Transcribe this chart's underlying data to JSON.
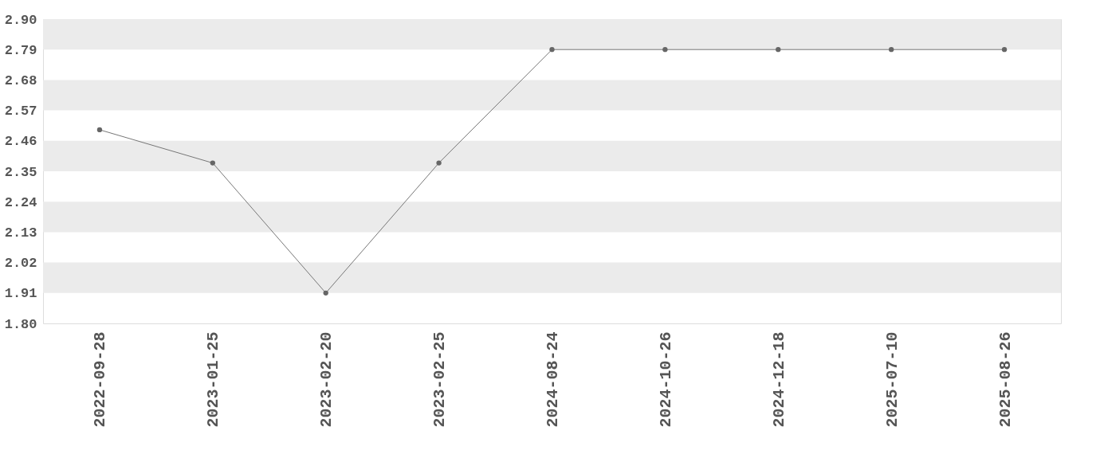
{
  "chart_data": {
    "type": "line",
    "categories": [
      "2022-09-28",
      "2023-01-25",
      "2023-02-20",
      "2023-02-25",
      "2024-08-24",
      "2024-10-26",
      "2024-12-18",
      "2025-07-10",
      "2025-08-26"
    ],
    "series": [
      {
        "color": "#777777",
        "values": [
          2.5,
          2.38,
          1.91,
          2.38,
          2.79,
          2.79,
          2.79,
          2.79,
          2.79
        ]
      }
    ],
    "ylim": [
      1.8,
      2.9
    ],
    "yticks": [
      {
        "value": 1.8,
        "label": "1.80"
      },
      {
        "value": 1.91,
        "label": "1.91"
      },
      {
        "value": 2.02,
        "label": "2.02"
      },
      {
        "value": 2.13,
        "label": "2.13"
      },
      {
        "value": 2.24,
        "label": "2.24"
      },
      {
        "value": 2.35,
        "label": "2.35"
      },
      {
        "value": 2.46,
        "label": "2.46"
      },
      {
        "value": 2.57,
        "label": "2.57"
      },
      {
        "value": 2.68,
        "label": "2.68"
      },
      {
        "value": 2.79,
        "label": "2.79"
      },
      {
        "value": 2.9,
        "label": "2.90"
      }
    ],
    "bands": [
      {
        "axis": "y",
        "from": 1.91,
        "to": 2.02,
        "color": "#ebebeb"
      },
      {
        "axis": "y",
        "from": 2.13,
        "to": 2.24,
        "color": "#ebebeb"
      },
      {
        "axis": "y",
        "from": 2.35,
        "to": 2.46,
        "color": "#ebebeb"
      },
      {
        "axis": "y",
        "from": 2.57,
        "to": 2.68,
        "color": "#ebebeb"
      },
      {
        "axis": "y",
        "from": 2.79,
        "to": 2.9,
        "color": "#ebebeb"
      }
    ],
    "marker": "circle",
    "line_style": "solid"
  }
}
